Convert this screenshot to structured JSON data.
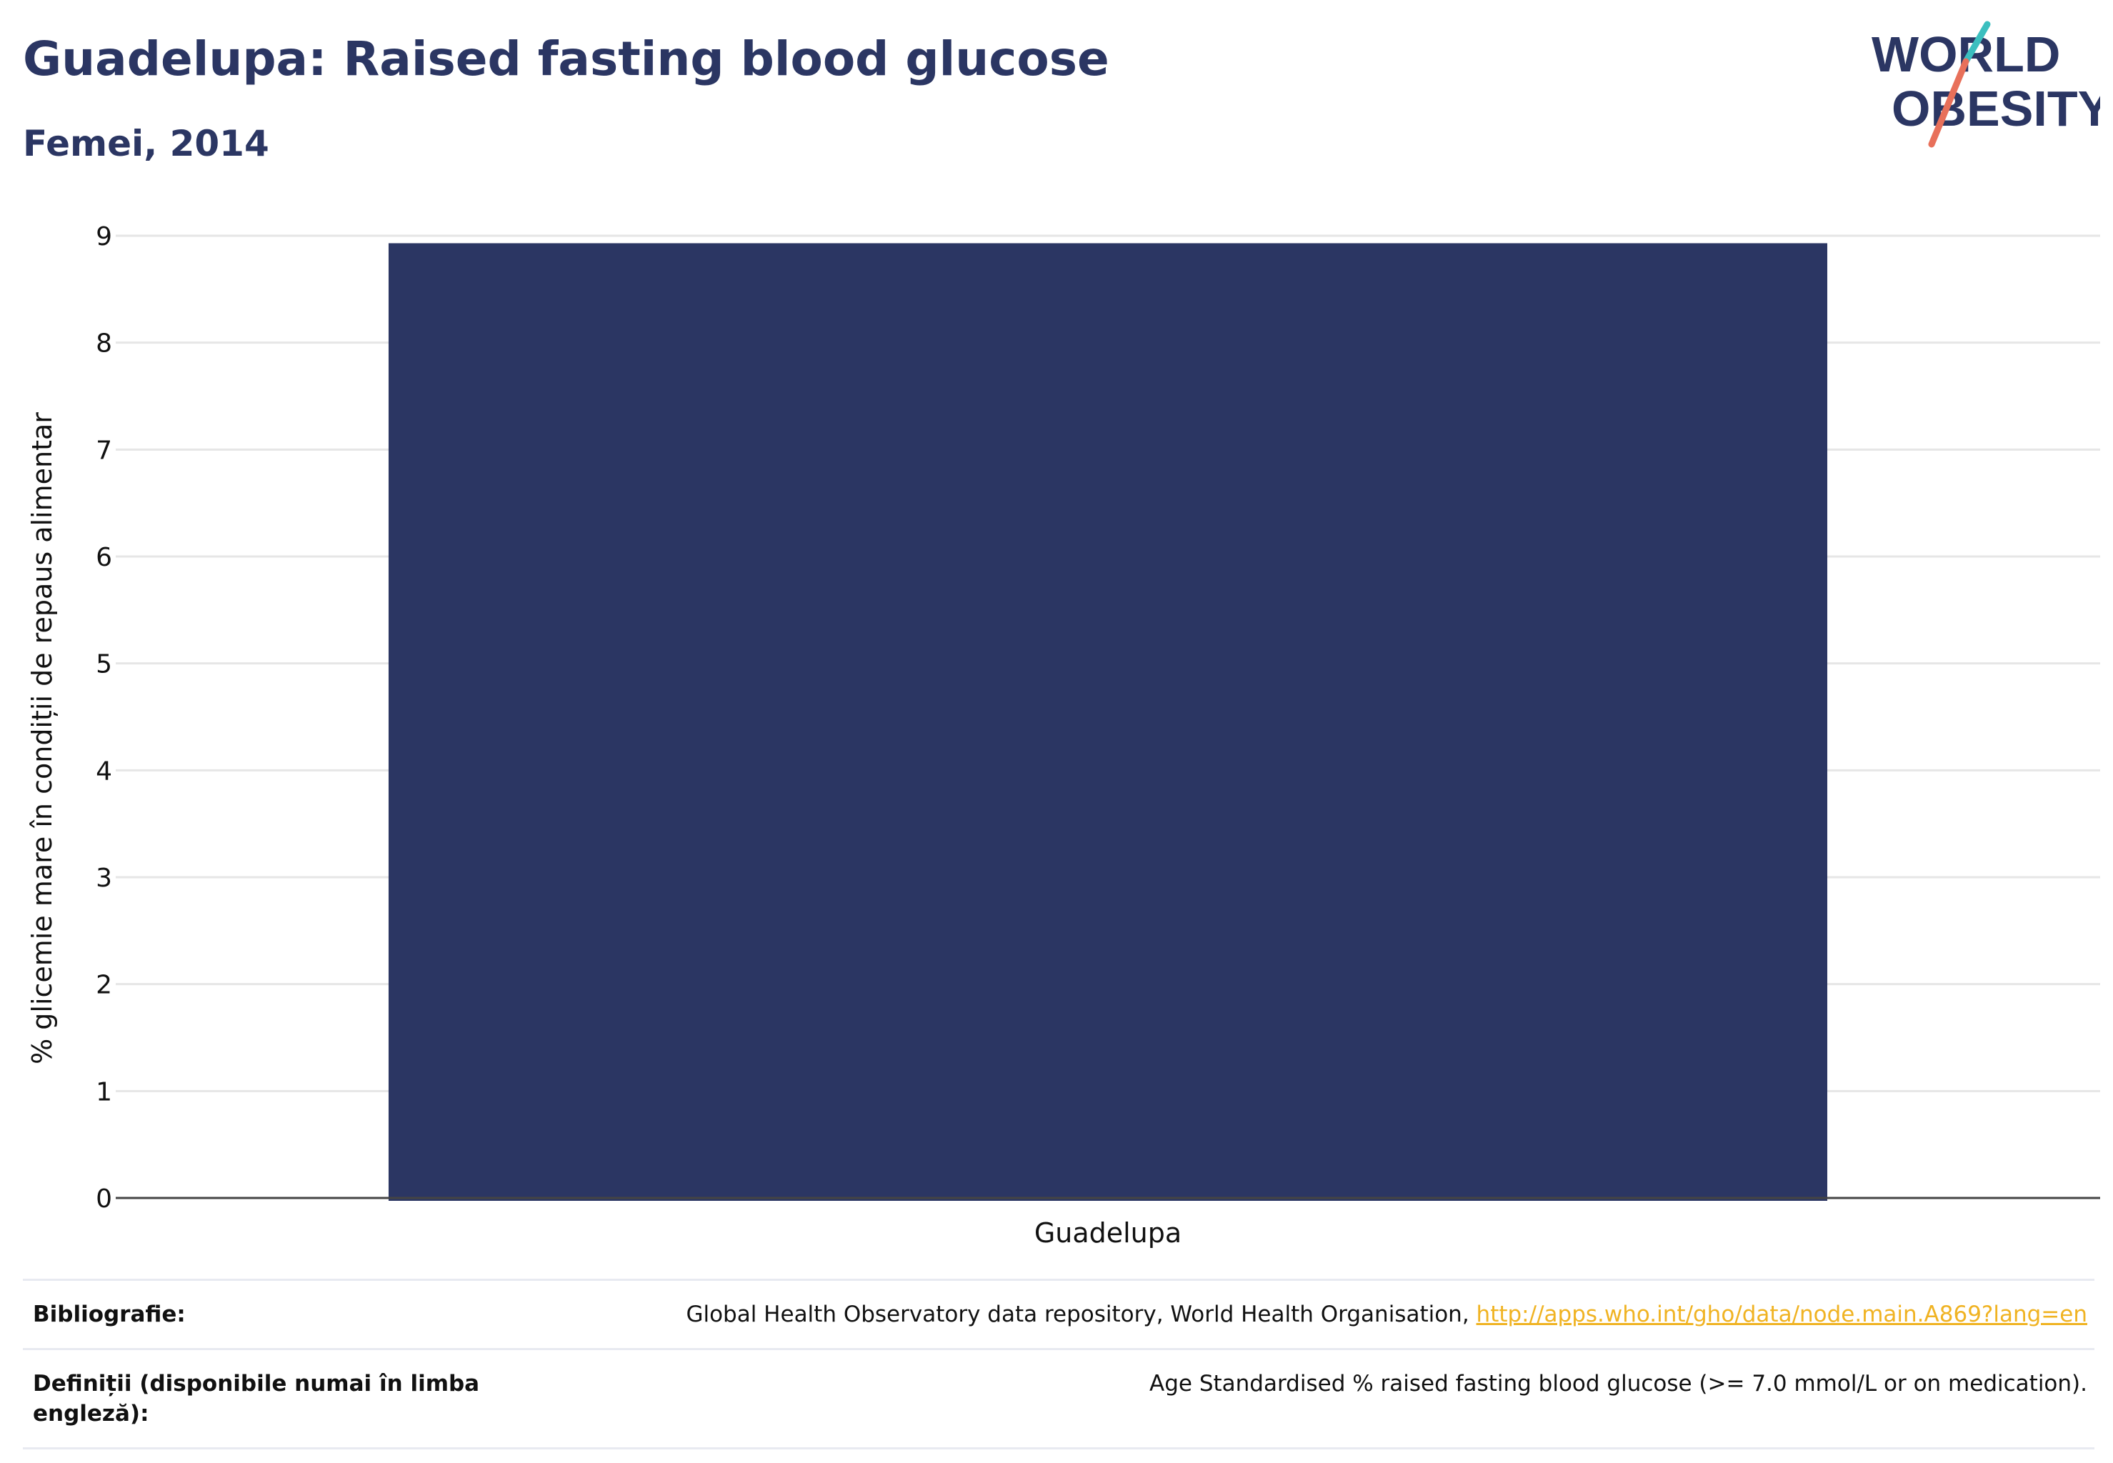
{
  "header": {
    "title": "Guadelupa: Raised fasting blood glucose",
    "subtitle": "Femei, 2014"
  },
  "logo": {
    "line1": "WORLD",
    "line2": "OBESITY",
    "colors": {
      "text": "#2b3663",
      "teal": "#3bbfbf",
      "coral": "#e8705a"
    }
  },
  "chart_data": {
    "type": "bar",
    "categories": [
      "Guadelupa"
    ],
    "values": [
      8.93
    ],
    "ylabel": "% glicemie mare în condiții de repaus alimentar",
    "xlabel": "",
    "ylim": [
      0,
      9
    ],
    "yticks": [
      "0",
      "1",
      "2",
      "3",
      "4",
      "5",
      "6",
      "7",
      "8",
      "9"
    ],
    "grid": true,
    "bar_color": "#2b3663"
  },
  "footer": {
    "bibliography_label": "Bibliografie:",
    "bibliography_text": "Global Health Observatory data repository, World Health Organisation,",
    "bibliography_link": "http://apps.who.int/gho/data/node.main.A869?lang=en",
    "definitions_label": "Definiții (disponibile numai în limba engleză):",
    "definitions_text": "Age Standardised % raised fasting blood glucose (>= 7.0 mmol/L or on medication)."
  }
}
